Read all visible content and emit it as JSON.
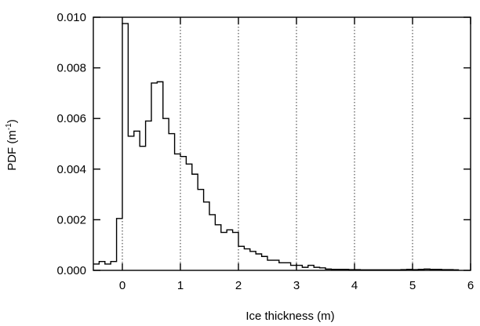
{
  "chart_data": {
    "type": "histogram-step",
    "xlabel": "Ice thickness (m)",
    "ylabel": "PDF (m",
    "ylabel_sup": "-1",
    "ylabel_close": ")",
    "xlim": [
      -0.5,
      6
    ],
    "ylim": [
      0,
      0.01
    ],
    "x_ticks": [
      0,
      1,
      2,
      3,
      4,
      5,
      6
    ],
    "x_tick_labels": [
      "0",
      "1",
      "2",
      "3",
      "4",
      "5",
      "6"
    ],
    "y_ticks": [
      0,
      0.002,
      0.004,
      0.006,
      0.008,
      0.01
    ],
    "y_tick_labels": [
      "0.000",
      "0.002",
      "0.004",
      "0.006",
      "0.008",
      "0.010"
    ],
    "grid": {
      "x_dotted_at": [
        0,
        1,
        2,
        3,
        4,
        5
      ]
    },
    "bin_width": 0.1,
    "bin_start": -0.5,
    "values": [
      0.00025,
      0.00035,
      0.00025,
      0.00035,
      0.00205,
      0.00975,
      0.0053,
      0.0055,
      0.0049,
      0.0059,
      0.0074,
      0.00745,
      0.006,
      0.0054,
      0.0046,
      0.0045,
      0.0042,
      0.0038,
      0.0032,
      0.0027,
      0.0022,
      0.0018,
      0.0015,
      0.0016,
      0.0015,
      0.00095,
      0.00085,
      0.00075,
      0.00065,
      0.00055,
      0.0004,
      0.0004,
      0.0003,
      0.0003,
      0.0002,
      0.0002,
      0.00012,
      0.0002,
      0.00012,
      0.0001,
      5e-05,
      4e-05,
      4e-05,
      4e-05,
      3e-05,
      3e-05,
      2e-05,
      2e-05,
      2e-05,
      2e-05,
      2e-05,
      2e-05,
      2e-05,
      3e-05,
      4e-05,
      3e-05,
      4e-05,
      5e-05,
      4e-05,
      4e-05,
      3e-05,
      3e-05,
      2e-05
    ]
  }
}
